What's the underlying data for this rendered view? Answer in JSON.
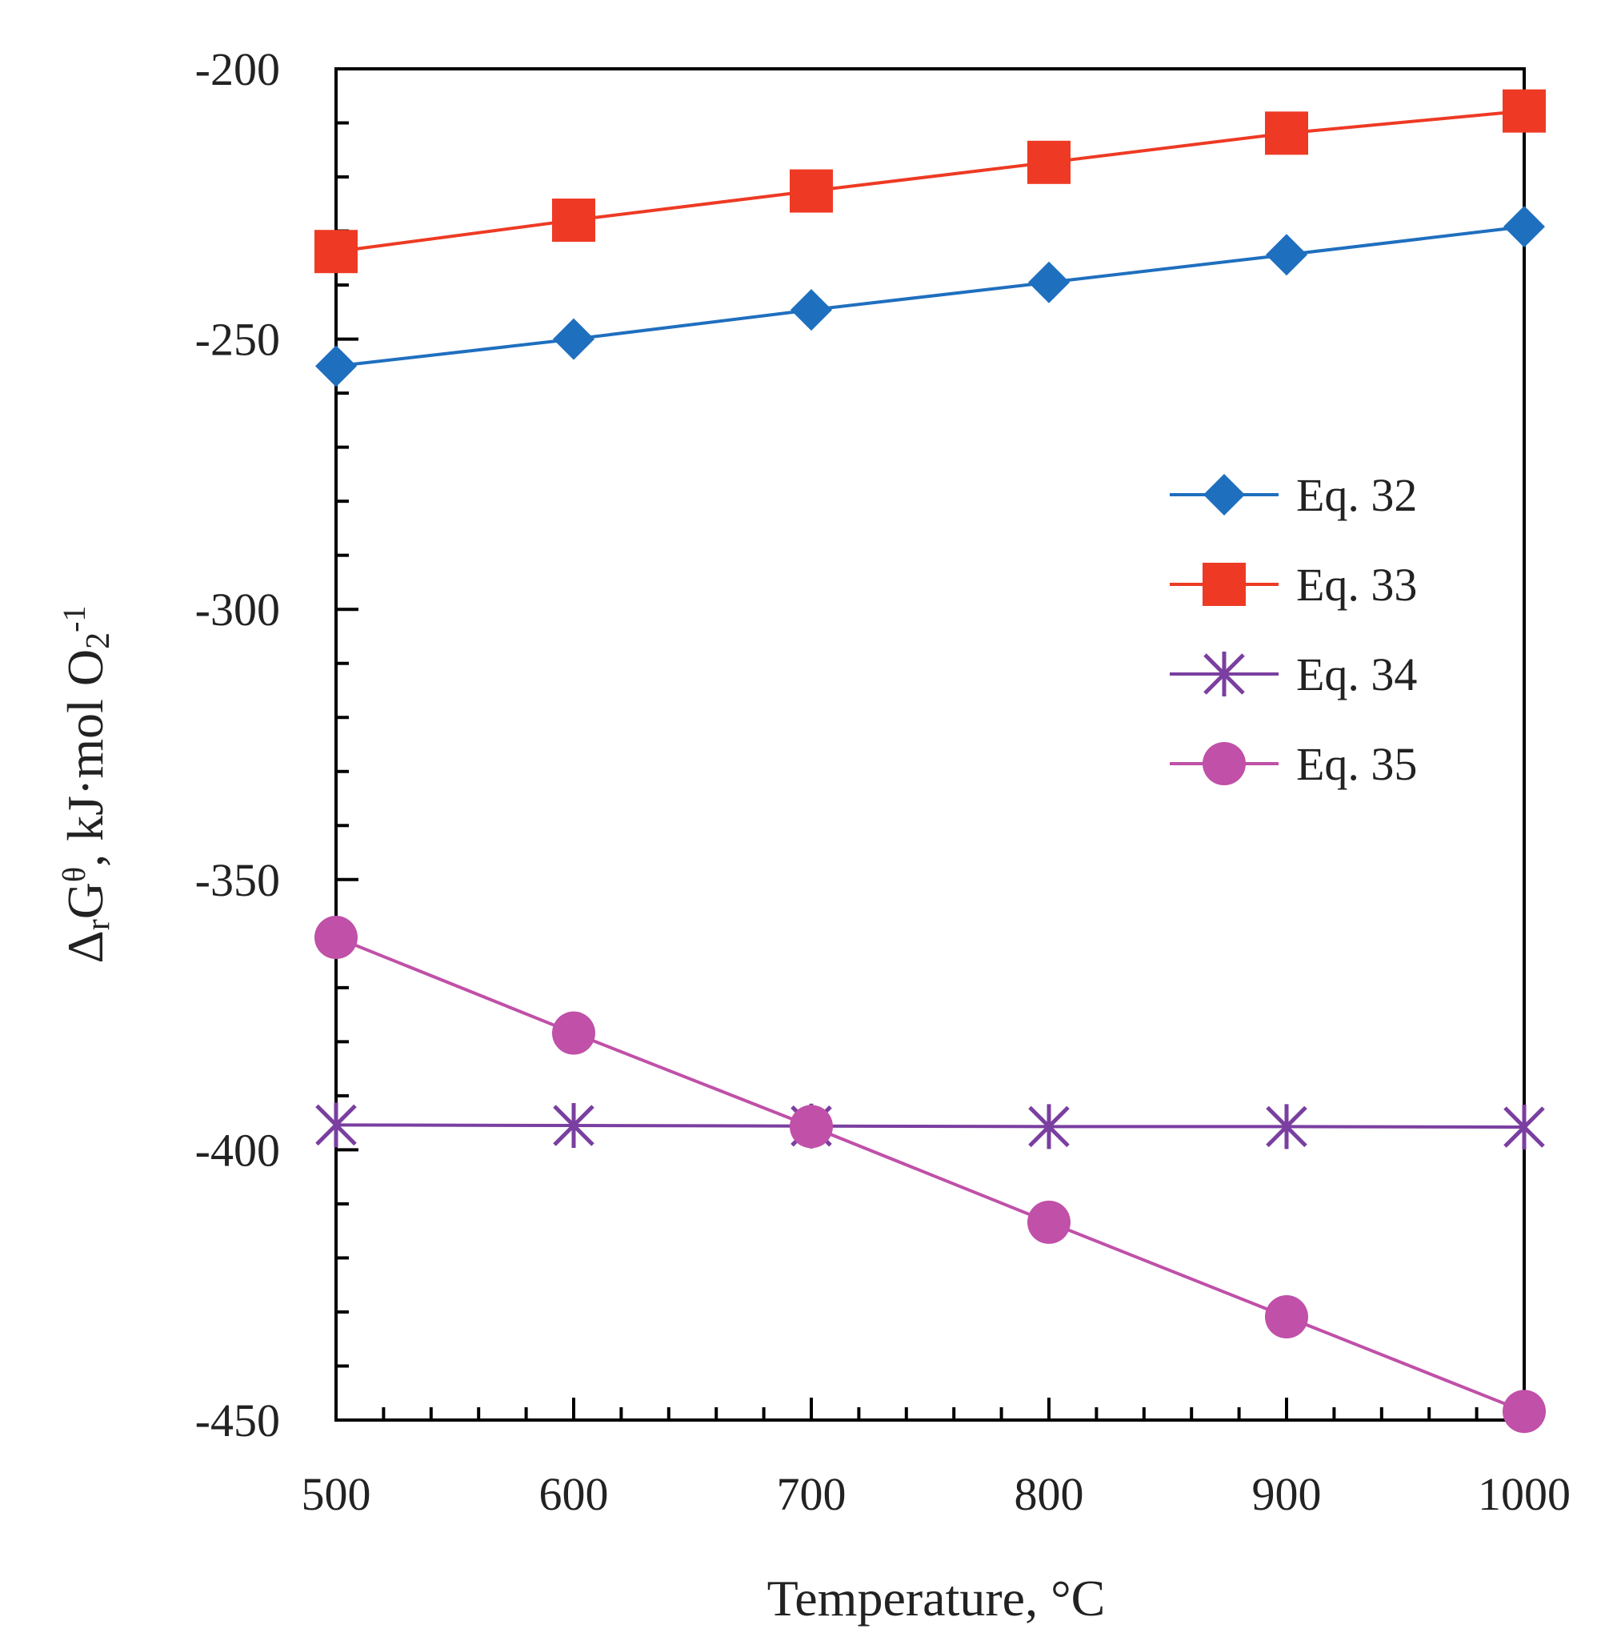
{
  "chart_data": {
    "type": "line",
    "title": "",
    "xlabel": "Temperature, °C",
    "ylabel": {
      "delta": "Δ",
      "delta_sub": "r",
      "g": "G",
      "theta": "θ",
      "mid": ", kJ·mol O",
      "o_sub": "2",
      "exp": "-1"
    },
    "xlim": [
      500,
      1000
    ],
    "ylim": [
      -450,
      -200
    ],
    "x_ticks": [
      500,
      600,
      700,
      800,
      900,
      1000
    ],
    "x_tick_labels": [
      "500",
      "600",
      "700",
      "800",
      "900",
      "1000"
    ],
    "x_minor_step": 20,
    "y_ticks": [
      -450,
      -400,
      -350,
      -300,
      -250,
      -200
    ],
    "y_tick_labels": [
      "-450",
      "-400",
      "-350",
      "-300",
      "-250",
      "-200"
    ],
    "y_minor_step": 10,
    "legend_position": "center-right",
    "x": [
      500,
      600,
      700,
      800,
      900,
      1000
    ],
    "series": [
      {
        "name": "Eq. 32",
        "marker": "diamond",
        "color": "#1f6fbf",
        "values": [
          -255,
          -250,
          -244.6,
          -239.5,
          -234.4,
          -229.2
        ]
      },
      {
        "name": "Eq. 33",
        "marker": "square",
        "color": "#ee3a24",
        "values": [
          -233.8,
          -228,
          -222.6,
          -217.3,
          -211.9,
          -207.8
        ]
      },
      {
        "name": "Eq. 34",
        "marker": "asterisk",
        "color": "#7a3fa0",
        "values": [
          -395.4,
          -395.5,
          -395.6,
          -395.7,
          -395.7,
          -395.8
        ]
      },
      {
        "name": "Eq. 35",
        "marker": "circle",
        "color": "#c050a8",
        "values": [
          -360.7,
          -378.4,
          -395.7,
          -413.4,
          -430.9,
          -448.4
        ]
      }
    ]
  }
}
